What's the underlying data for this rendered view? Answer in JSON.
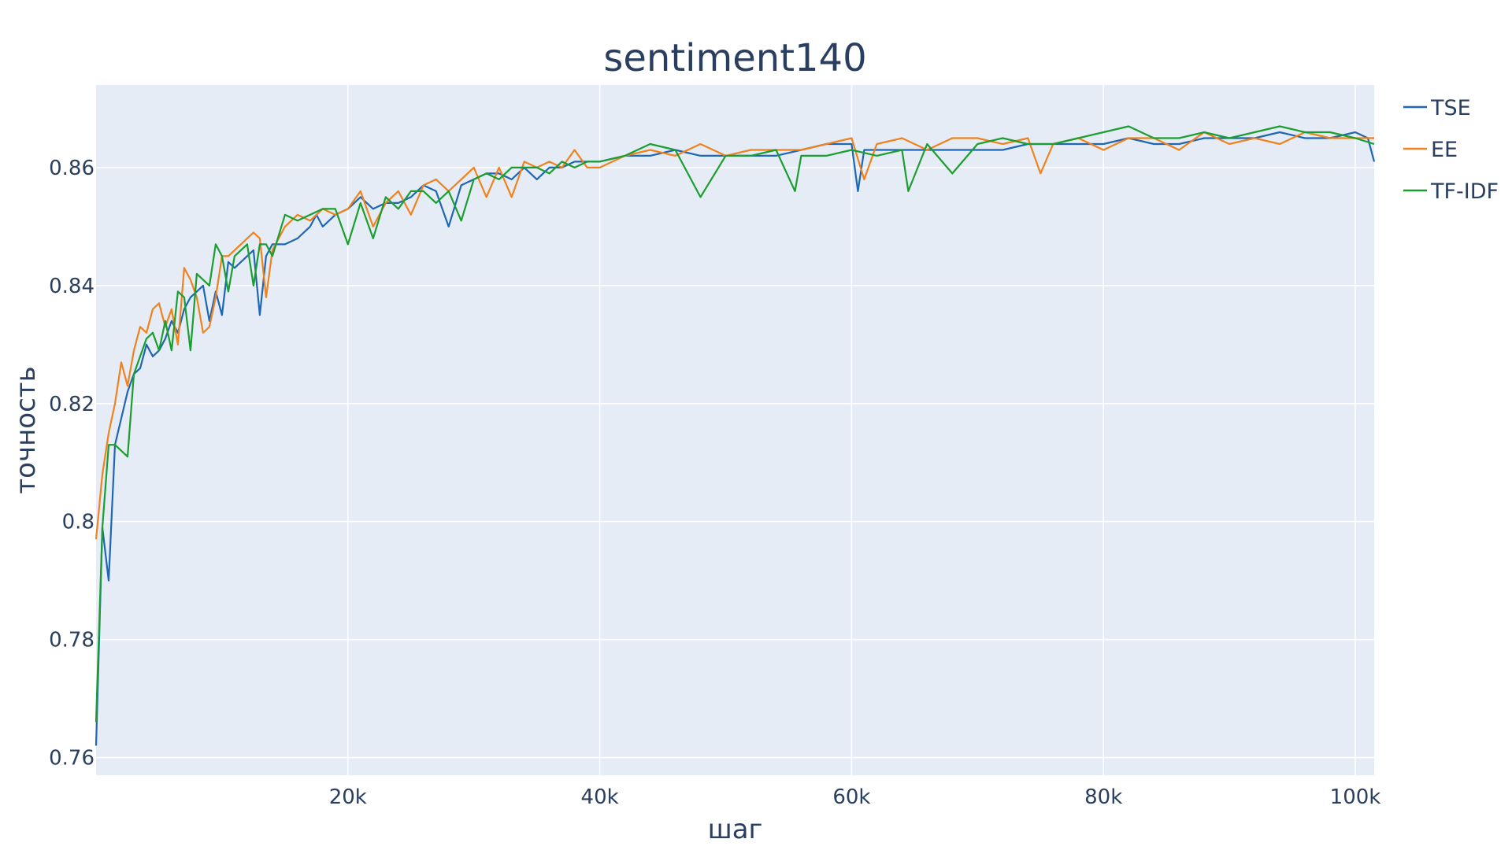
{
  "chart_data": {
    "type": "line",
    "title": "sentiment140",
    "xlabel": "шаг",
    "ylabel": "точность",
    "xlim": [
      0,
      101500
    ],
    "ylim": [
      0.757,
      0.874
    ],
    "x_ticks": [
      20000,
      40000,
      60000,
      80000,
      100000
    ],
    "x_tick_labels": [
      "20k",
      "40k",
      "60k",
      "80k",
      "100k"
    ],
    "y_ticks": [
      0.76,
      0.78,
      0.8,
      0.82,
      0.84,
      0.86
    ],
    "y_tick_labels": [
      "0.76",
      "0.78",
      "0.8",
      "0.82",
      "0.84",
      "0.86"
    ],
    "grid": true,
    "legend_position": "top-right",
    "series": [
      {
        "name": "TSE",
        "color": "#1f66b3",
        "x": [
          0,
          500,
          1000,
          1500,
          2500,
          3000,
          3500,
          4000,
          4500,
          5000,
          5500,
          6000,
          6500,
          7000,
          7500,
          8000,
          8500,
          9000,
          9500,
          10000,
          10500,
          11000,
          12000,
          12500,
          13000,
          13500,
          14000,
          15000,
          16000,
          17000,
          17500,
          18000,
          19000,
          20000,
          21000,
          22000,
          23000,
          24000,
          25000,
          26000,
          27000,
          28000,
          29000,
          30000,
          31000,
          32000,
          33000,
          34000,
          35000,
          36000,
          37000,
          38000,
          39000,
          40000,
          42000,
          44000,
          46000,
          48000,
          50000,
          52000,
          54000,
          56000,
          58000,
          60000,
          60500,
          61000,
          62000,
          64000,
          66000,
          68000,
          70000,
          72000,
          74000,
          76000,
          78000,
          80000,
          82000,
          84000,
          86000,
          88000,
          90000,
          92000,
          94000,
          96000,
          98000,
          100000,
          101000,
          101500
        ],
        "y": [
          0.762,
          0.799,
          0.79,
          0.813,
          0.822,
          0.825,
          0.826,
          0.83,
          0.828,
          0.829,
          0.831,
          0.834,
          0.832,
          0.836,
          0.838,
          0.839,
          0.84,
          0.834,
          0.839,
          0.835,
          0.844,
          0.843,
          0.845,
          0.846,
          0.835,
          0.845,
          0.847,
          0.847,
          0.848,
          0.85,
          0.852,
          0.85,
          0.852,
          0.853,
          0.855,
          0.853,
          0.854,
          0.854,
          0.855,
          0.857,
          0.856,
          0.85,
          0.857,
          0.858,
          0.859,
          0.859,
          0.858,
          0.86,
          0.858,
          0.86,
          0.86,
          0.861,
          0.861,
          0.861,
          0.862,
          0.862,
          0.863,
          0.862,
          0.862,
          0.862,
          0.862,
          0.863,
          0.864,
          0.864,
          0.856,
          0.863,
          0.863,
          0.863,
          0.863,
          0.863,
          0.863,
          0.863,
          0.864,
          0.864,
          0.864,
          0.864,
          0.865,
          0.864,
          0.864,
          0.865,
          0.865,
          0.865,
          0.866,
          0.865,
          0.865,
          0.866,
          0.865,
          0.861
        ]
      },
      {
        "name": "EE",
        "color": "#f0821e",
        "x": [
          0,
          500,
          1000,
          1500,
          2000,
          2500,
          3000,
          3500,
          4000,
          4500,
          5000,
          5500,
          6000,
          6500,
          7000,
          7500,
          8000,
          8500,
          9000,
          9500,
          10000,
          10500,
          11000,
          12000,
          12500,
          13000,
          13500,
          14000,
          15000,
          16000,
          17000,
          18000,
          19000,
          20000,
          21000,
          22000,
          23000,
          24000,
          25000,
          26000,
          27000,
          28000,
          29000,
          30000,
          31000,
          32000,
          33000,
          34000,
          35000,
          36000,
          37000,
          38000,
          39000,
          40000,
          42000,
          44000,
          46000,
          48000,
          50000,
          52000,
          54000,
          56000,
          58000,
          60000,
          61000,
          62000,
          64000,
          66000,
          68000,
          70000,
          72000,
          74000,
          75000,
          76000,
          78000,
          80000,
          82000,
          84000,
          86000,
          88000,
          90000,
          92000,
          94000,
          96000,
          98000,
          100000,
          101500
        ],
        "y": [
          0.797,
          0.808,
          0.815,
          0.82,
          0.827,
          0.823,
          0.829,
          0.833,
          0.832,
          0.836,
          0.837,
          0.833,
          0.836,
          0.83,
          0.843,
          0.841,
          0.838,
          0.832,
          0.833,
          0.838,
          0.845,
          0.845,
          0.846,
          0.848,
          0.849,
          0.848,
          0.838,
          0.846,
          0.85,
          0.852,
          0.851,
          0.853,
          0.852,
          0.853,
          0.856,
          0.85,
          0.854,
          0.856,
          0.852,
          0.857,
          0.858,
          0.856,
          0.858,
          0.86,
          0.855,
          0.86,
          0.855,
          0.861,
          0.86,
          0.861,
          0.86,
          0.863,
          0.86,
          0.86,
          0.862,
          0.863,
          0.862,
          0.864,
          0.862,
          0.863,
          0.863,
          0.863,
          0.864,
          0.865,
          0.858,
          0.864,
          0.865,
          0.863,
          0.865,
          0.865,
          0.864,
          0.865,
          0.859,
          0.864,
          0.865,
          0.863,
          0.865,
          0.865,
          0.863,
          0.866,
          0.864,
          0.865,
          0.864,
          0.866,
          0.865,
          0.865,
          0.865
        ]
      },
      {
        "name": "TF-IDF",
        "color": "#1a9e2f",
        "x": [
          0,
          500,
          1000,
          1500,
          2000,
          2500,
          3000,
          3500,
          4000,
          4500,
          5000,
          5500,
          6000,
          6500,
          7000,
          7500,
          8000,
          8500,
          9000,
          9500,
          10000,
          10500,
          11000,
          12000,
          12500,
          13000,
          13500,
          14000,
          15000,
          16000,
          17000,
          18000,
          19000,
          20000,
          21000,
          22000,
          23000,
          24000,
          25000,
          26000,
          27000,
          28000,
          29000,
          30000,
          31000,
          32000,
          33000,
          34000,
          35000,
          36000,
          37000,
          38000,
          39000,
          40000,
          42000,
          44000,
          46000,
          48000,
          50000,
          52000,
          54000,
          55500,
          56000,
          58000,
          60000,
          62000,
          64000,
          64500,
          66000,
          68000,
          70000,
          72000,
          74000,
          76000,
          78000,
          80000,
          82000,
          84000,
          86000,
          88000,
          90000,
          92000,
          94000,
          96000,
          98000,
          100000,
          101500
        ],
        "y": [
          0.766,
          0.799,
          0.813,
          0.813,
          0.812,
          0.811,
          0.825,
          0.828,
          0.831,
          0.832,
          0.829,
          0.834,
          0.829,
          0.839,
          0.838,
          0.829,
          0.842,
          0.841,
          0.84,
          0.847,
          0.845,
          0.839,
          0.845,
          0.847,
          0.84,
          0.847,
          0.847,
          0.845,
          0.852,
          0.851,
          0.852,
          0.853,
          0.853,
          0.847,
          0.854,
          0.848,
          0.855,
          0.853,
          0.856,
          0.856,
          0.854,
          0.856,
          0.851,
          0.858,
          0.859,
          0.858,
          0.86,
          0.86,
          0.86,
          0.859,
          0.861,
          0.86,
          0.861,
          0.861,
          0.862,
          0.864,
          0.863,
          0.855,
          0.862,
          0.862,
          0.863,
          0.856,
          0.862,
          0.862,
          0.863,
          0.862,
          0.863,
          0.856,
          0.864,
          0.859,
          0.864,
          0.865,
          0.864,
          0.864,
          0.865,
          0.866,
          0.867,
          0.865,
          0.865,
          0.866,
          0.865,
          0.866,
          0.867,
          0.866,
          0.866,
          0.865,
          0.864
        ]
      }
    ]
  }
}
